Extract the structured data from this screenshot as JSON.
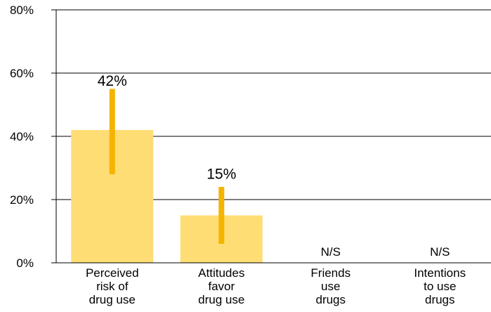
{
  "chart_data": {
    "type": "bar",
    "categories": [
      [
        "Perceived",
        "risk of",
        "drug use"
      ],
      [
        "Attitudes",
        "favor",
        "drug use"
      ],
      [
        "Friends",
        "use",
        "drugs"
      ],
      [
        "Intentions",
        "to use",
        "drugs"
      ]
    ],
    "values": [
      42,
      15,
      null,
      null
    ],
    "error_bars": [
      [
        28,
        55
      ],
      [
        6,
        24
      ],
      null,
      null
    ],
    "data_labels": [
      "42%",
      "15%",
      "N/S",
      "N/S"
    ],
    "ylim": [
      0,
      80
    ],
    "yticks": [
      0,
      20,
      40,
      60,
      80
    ],
    "ytick_labels": [
      "0%",
      "20%",
      "40%",
      "60%",
      "80%"
    ],
    "grid": true,
    "colors": {
      "bar": "#FFDD75",
      "error_bar": "#F5B400",
      "grid": "#000000"
    }
  }
}
